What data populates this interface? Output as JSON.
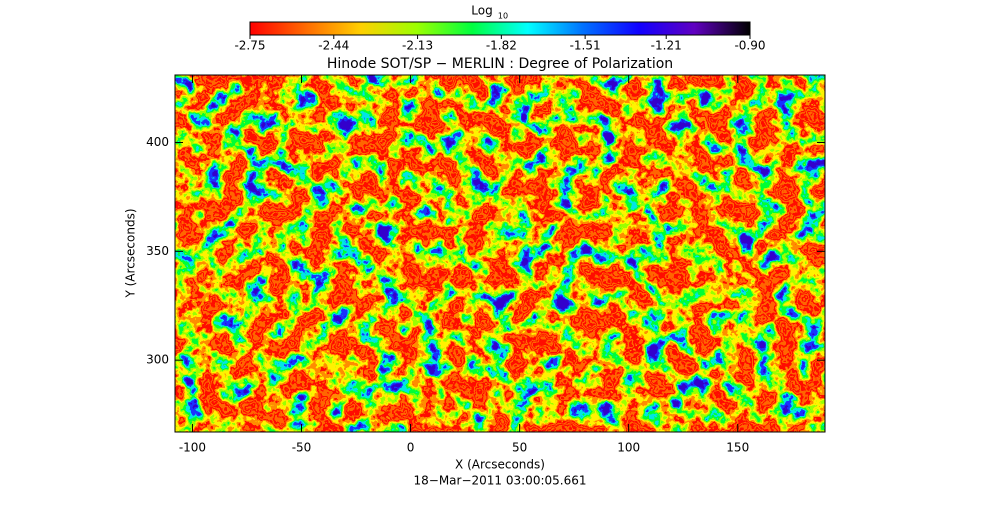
{
  "chart_data": {
    "type": "heatmap",
    "title": "Hinode SOT/SP − MERLIN : Degree of Polarization",
    "xlabel": "X (Arcseconds)",
    "ylabel": "Y (Arcseconds)",
    "annotation": "18−Mar−2011 03:00:05.661",
    "xlim": [
      -108,
      190
    ],
    "ylim": [
      267,
      431
    ],
    "xticks": [
      -100,
      -50,
      0,
      50,
      100,
      150
    ],
    "yticks": [
      300,
      350,
      400
    ],
    "colorbar": {
      "label": "Log",
      "label_subscript": "10",
      "lim": [
        -2.75,
        -0.9
      ],
      "ticks": [
        -2.75,
        -2.44,
        -2.13,
        -1.82,
        -1.51,
        -1.21,
        {
          "value": -0.9,
          "label": "-0.90"
        }
      ],
      "colormap": [
        "#ff0000",
        "#ff6a00",
        "#ffd000",
        "#9cff00",
        "#00ff40",
        "#00ffff",
        "#0070ff",
        "#1000ff",
        "#6000c0",
        "#000000"
      ]
    }
  }
}
